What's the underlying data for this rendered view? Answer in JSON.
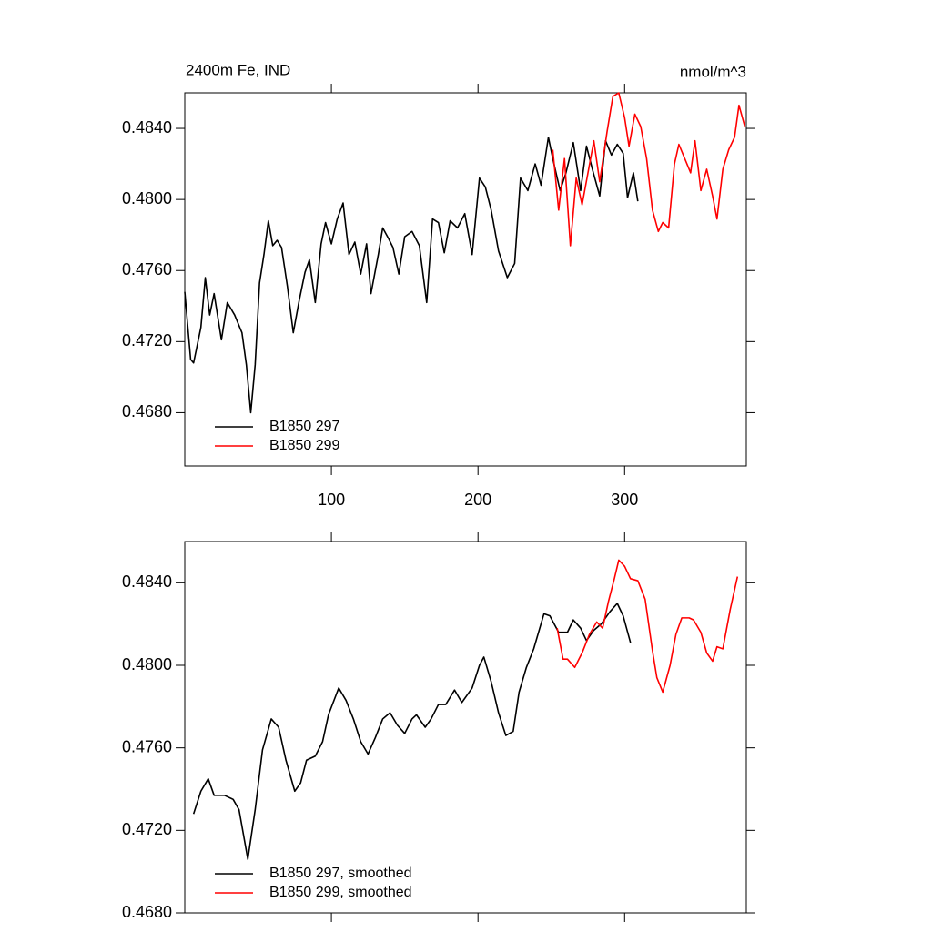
{
  "chart_data": [
    {
      "type": "line",
      "title": "2400m Fe, IND",
      "ylabel": "nmol/m^3",
      "xlim": [
        0,
        383
      ],
      "xticks": [
        100,
        200,
        300
      ],
      "ylim": [
        0.465,
        0.486
      ],
      "yticks": [
        {
          "value": 0.468,
          "label": "0.4680"
        },
        {
          "value": 0.472,
          "label": "0.4720"
        },
        {
          "value": 0.476,
          "label": "0.4760"
        },
        {
          "value": 0.48,
          "label": "0.4800"
        },
        {
          "value": 0.484,
          "label": "0.4840"
        }
      ],
      "legend": "lower left",
      "series": [
        {
          "name": "B1850 297",
          "color": "#000000",
          "x": [
            0,
            4,
            6,
            11,
            14,
            17,
            20,
            25,
            29,
            34,
            39,
            42,
            45,
            48,
            51,
            54,
            57,
            60,
            63,
            66,
            70,
            74,
            78,
            82,
            85,
            89,
            93,
            96,
            100,
            104,
            108,
            112,
            116,
            120,
            124,
            127,
            132,
            135,
            139,
            142,
            146,
            150,
            155,
            160,
            165,
            169,
            173,
            177,
            181,
            186,
            191,
            196,
            201,
            205,
            209,
            214,
            220,
            225,
            229,
            234,
            239,
            243,
            248,
            251,
            256,
            260,
            265,
            270,
            274,
            278,
            283,
            287,
            291,
            295,
            299,
            302,
            306,
            309
          ],
          "values": [
            0.4748,
            0.471,
            0.4708,
            0.4728,
            0.4756,
            0.4735,
            0.4747,
            0.4721,
            0.4742,
            0.4735,
            0.4725,
            0.4707,
            0.468,
            0.4707,
            0.4753,
            0.4769,
            0.4788,
            0.4774,
            0.4777,
            0.4773,
            0.4751,
            0.4725,
            0.4743,
            0.4759,
            0.4766,
            0.4742,
            0.4775,
            0.4787,
            0.4775,
            0.4789,
            0.4798,
            0.4769,
            0.4776,
            0.4758,
            0.4775,
            0.4747,
            0.4769,
            0.4784,
            0.4778,
            0.4773,
            0.4758,
            0.4779,
            0.4782,
            0.4774,
            0.4742,
            0.4789,
            0.4787,
            0.477,
            0.4788,
            0.4784,
            0.4792,
            0.4769,
            0.4812,
            0.4807,
            0.4794,
            0.4771,
            0.4756,
            0.4764,
            0.4812,
            0.4805,
            0.482,
            0.4808,
            0.4835,
            0.4823,
            0.4805,
            0.4815,
            0.4832,
            0.4805,
            0.483,
            0.4817,
            0.4802,
            0.4833,
            0.4825,
            0.4831,
            0.4826,
            0.4801,
            0.4815,
            0.4799
          ]
        },
        {
          "name": "B1850 299",
          "color": "#ff0000",
          "x": [
            251,
            255,
            259,
            263,
            267,
            271,
            275,
            279,
            283,
            288,
            292,
            296,
            300,
            303,
            307,
            311,
            315,
            319,
            323,
            326,
            330,
            334,
            337,
            341,
            345,
            348,
            352,
            356,
            360,
            363,
            367,
            371,
            375,
            378,
            382
          ],
          "values": [
            0.4828,
            0.4794,
            0.4823,
            0.4774,
            0.4812,
            0.4797,
            0.4815,
            0.4833,
            0.481,
            0.4838,
            0.4858,
            0.486,
            0.4846,
            0.483,
            0.4848,
            0.4841,
            0.4823,
            0.4794,
            0.4782,
            0.4787,
            0.4784,
            0.482,
            0.4831,
            0.4823,
            0.4815,
            0.4833,
            0.4805,
            0.4817,
            0.4802,
            0.4789,
            0.4817,
            0.4828,
            0.4835,
            0.4853,
            0.4841
          ]
        }
      ]
    },
    {
      "type": "line",
      "xlim": [
        0,
        383
      ],
      "ylim": [
        0.468,
        0.486
      ],
      "yticks": [
        {
          "value": 0.468,
          "label": "0.4680"
        },
        {
          "value": 0.472,
          "label": "0.4720"
        },
        {
          "value": 0.476,
          "label": "0.4760"
        },
        {
          "value": 0.48,
          "label": "0.4800"
        },
        {
          "value": 0.484,
          "label": "0.4840"
        }
      ],
      "legend": "lower left",
      "series": [
        {
          "name": "B1850 297, smoothed",
          "color": "#000000",
          "x": [
            6,
            11,
            16,
            20,
            27,
            33,
            37,
            43,
            48,
            53,
            59,
            64,
            69,
            75,
            79,
            83,
            89,
            94,
            98,
            105,
            110,
            115,
            120,
            125,
            130,
            135,
            140,
            145,
            150,
            155,
            158,
            164,
            168,
            173,
            178,
            184,
            189,
            196,
            201,
            204,
            209,
            214,
            219,
            224,
            228,
            233,
            238,
            245,
            249,
            255,
            261,
            265,
            270,
            274,
            279,
            284,
            290,
            295,
            299,
            304
          ],
          "values": [
            0.4728,
            0.4739,
            0.4745,
            0.4737,
            0.4737,
            0.4735,
            0.473,
            0.4706,
            0.473,
            0.4759,
            0.4774,
            0.477,
            0.4754,
            0.4739,
            0.4743,
            0.4754,
            0.4756,
            0.4763,
            0.4776,
            0.4789,
            0.4783,
            0.4774,
            0.4763,
            0.4757,
            0.4765,
            0.4774,
            0.4777,
            0.4771,
            0.4767,
            0.4774,
            0.4776,
            0.477,
            0.4774,
            0.4781,
            0.4781,
            0.4788,
            0.4782,
            0.4789,
            0.48,
            0.4804,
            0.4792,
            0.4777,
            0.4766,
            0.4768,
            0.4787,
            0.4799,
            0.4808,
            0.4825,
            0.4824,
            0.4816,
            0.4816,
            0.4822,
            0.4818,
            0.4812,
            0.4817,
            0.482,
            0.4826,
            0.483,
            0.4824,
            0.4811
          ]
        },
        {
          "name": "B1850 299, smoothed",
          "color": "#ff0000",
          "x": [
            254,
            258,
            261,
            266,
            271,
            276,
            281,
            285,
            289,
            293,
            296,
            300,
            304,
            309,
            314,
            319,
            322,
            326,
            331,
            335,
            339,
            344,
            347,
            352,
            356,
            360,
            363,
            367,
            372,
            377
          ],
          "values": [
            0.4818,
            0.4803,
            0.4803,
            0.4799,
            0.4806,
            0.4815,
            0.4821,
            0.4818,
            0.4831,
            0.4842,
            0.4851,
            0.4848,
            0.4842,
            0.4841,
            0.4832,
            0.4807,
            0.4794,
            0.4787,
            0.48,
            0.4815,
            0.4823,
            0.4823,
            0.4822,
            0.4816,
            0.4806,
            0.4802,
            0.4809,
            0.4808,
            0.4827,
            0.4843
          ]
        }
      ]
    }
  ]
}
